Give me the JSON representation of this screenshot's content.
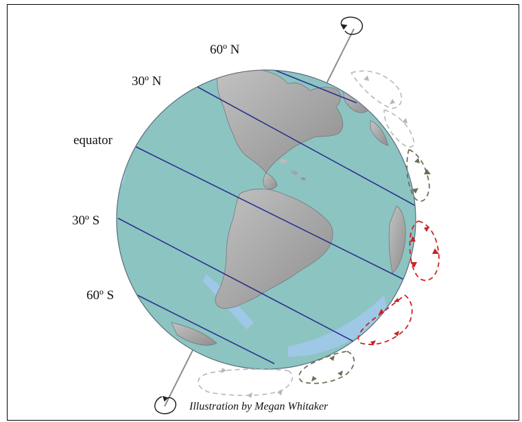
{
  "labels": {
    "lat_60n": "60º N",
    "lat_30n": "30º N",
    "equator": "equator",
    "lat_30s": "30º S",
    "lat_60s": "60º S"
  },
  "credit": "Illustration by Megan Whitaker",
  "colors": {
    "ocean": "#8cc4c2",
    "land": "#a9a9a9",
    "shallow": "#9ec8e6",
    "latitude_line": "#2b2f8f",
    "arrow_gray_light": "#b7b7b7",
    "arrow_gray_dark": "#6e6e58",
    "arrow_red": "#cc2222"
  },
  "icons": {
    "axis": "rotation-axis-icon",
    "rotation": "rotation-arrow-icon"
  }
}
